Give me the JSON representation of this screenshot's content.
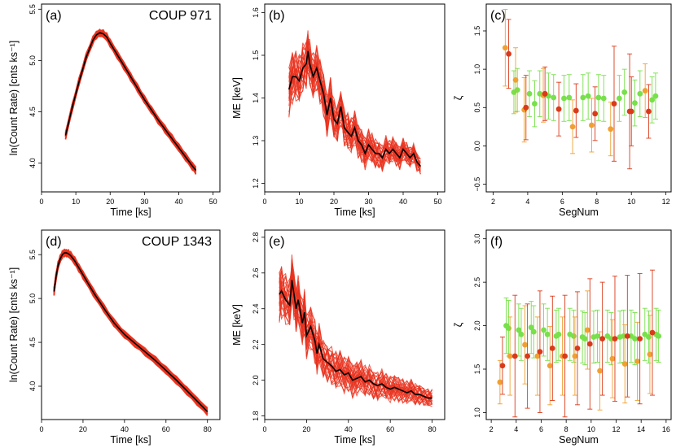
{
  "chart_data": [
    {
      "panel_label": "(a)",
      "type": "line",
      "annotation": "COUP 971",
      "xlabel": "Time [ks]",
      "ylabel": "ln(Count Rate) [cnts ks⁻¹]",
      "xlim": [
        0,
        52
      ],
      "ylim": [
        3.72,
        5.55
      ],
      "xticks": [
        0,
        10,
        20,
        30,
        40,
        50
      ],
      "yticks": [
        4.0,
        4.5,
        5.0,
        5.5
      ],
      "ytick_labels": [
        "4.0",
        "4.5",
        "5.0",
        "5.5"
      ],
      "band_color": "#e8321e",
      "line_color": "#000000",
      "series": [
        {
          "name": "ln(Count Rate)",
          "x": [
            7,
            9,
            11,
            13,
            15,
            16,
            17,
            18,
            19,
            20,
            22,
            24,
            26,
            28,
            30,
            32,
            34,
            36,
            38,
            40,
            42,
            44,
            45
          ],
          "y": [
            4.27,
            4.55,
            4.8,
            5.03,
            5.2,
            5.25,
            5.27,
            5.26,
            5.23,
            5.17,
            5.06,
            4.95,
            4.84,
            4.73,
            4.62,
            4.52,
            4.42,
            4.33,
            4.24,
            4.15,
            4.06,
            3.97,
            3.93
          ]
        }
      ]
    },
    {
      "panel_label": "(b)",
      "type": "line",
      "xlabel": "Time [ks]",
      "ylabel": "ME [keV]",
      "xlim": [
        0,
        52
      ],
      "ylim": [
        1.18,
        1.62
      ],
      "xticks": [
        0,
        10,
        20,
        30,
        40,
        50
      ],
      "yticks": [
        1.2,
        1.3,
        1.4,
        1.5,
        1.6
      ],
      "ytick_labels": [
        "1.2",
        "1.3",
        "1.4",
        "1.5",
        "1.6"
      ],
      "band_color": "#e8321e",
      "line_color": "#000000",
      "series": [
        {
          "name": "ME",
          "x": [
            7,
            8,
            9,
            10,
            11,
            12,
            12.5,
            13,
            14,
            15,
            16,
            17,
            18,
            19,
            20,
            21,
            22,
            23,
            24,
            25,
            26,
            27,
            28,
            29,
            30,
            31,
            32,
            33,
            34,
            35,
            36,
            37,
            38,
            39,
            40,
            41,
            42,
            43,
            44,
            45
          ],
          "y": [
            1.42,
            1.45,
            1.45,
            1.44,
            1.47,
            1.48,
            1.51,
            1.48,
            1.45,
            1.47,
            1.44,
            1.41,
            1.36,
            1.4,
            1.35,
            1.34,
            1.38,
            1.33,
            1.32,
            1.31,
            1.33,
            1.3,
            1.29,
            1.27,
            1.29,
            1.28,
            1.27,
            1.27,
            1.26,
            1.28,
            1.27,
            1.28,
            1.27,
            1.26,
            1.28,
            1.27,
            1.26,
            1.27,
            1.25,
            1.24
          ]
        }
      ]
    },
    {
      "panel_label": "(c)",
      "type": "scatter",
      "xlabel": "SegNum",
      "ylabel": "ζ",
      "xlim": [
        1.6,
        12.3
      ],
      "ylim": [
        -0.6,
        1.85
      ],
      "xticks": [
        2,
        4,
        6,
        8,
        10,
        12
      ],
      "yticks": [
        -0.5,
        0.0,
        0.5,
        1.0,
        1.5
      ],
      "ytick_labels": [
        "−0.5",
        "0.0",
        "0.5",
        "1.0",
        "1.5"
      ],
      "series": [
        {
          "name": "green",
          "color": "#77e04a",
          "x": [
            3.2,
            3.4,
            4.1,
            4.4,
            4.7,
            5.2,
            5.5,
            6.1,
            6.4,
            7.2,
            7.5,
            8.1,
            8.4,
            9.3,
            9.6,
            10.2,
            10.5,
            11.2,
            11.4
          ],
          "y": [
            0.7,
            0.73,
            0.68,
            0.55,
            0.68,
            0.65,
            0.63,
            0.62,
            0.63,
            0.63,
            0.65,
            0.63,
            0.62,
            0.62,
            0.7,
            0.56,
            0.68,
            0.6,
            0.65
          ],
          "err": [
            0.28,
            0.28,
            0.3,
            0.3,
            0.3,
            0.3,
            0.3,
            0.3,
            0.3,
            0.3,
            0.3,
            0.3,
            0.3,
            0.3,
            0.3,
            0.3,
            0.3,
            0.3,
            0.3
          ]
        },
        {
          "name": "orange",
          "color": "#f0a030",
          "x": [
            2.7,
            3.3,
            3.8,
            4.9,
            6.6,
            7.7,
            8.8,
            10.8
          ],
          "y": [
            1.28,
            0.86,
            0.47,
            0.66,
            0.25,
            0.27,
            0.22,
            0.72
          ],
          "err": [
            0.5,
            0.42,
            0.42,
            0.35,
            0.35,
            0.35,
            0.35,
            0.35
          ]
        },
        {
          "name": "red",
          "color": "#d93a1a",
          "x": [
            2.9,
            3.9,
            5.0,
            5.8,
            6.8,
            7.9,
            9.0,
            9.9,
            10.0,
            11.0
          ],
          "y": [
            1.2,
            0.5,
            0.68,
            0.48,
            0.46,
            0.42,
            0.55,
            0.45,
            0.45,
            0.45
          ],
          "err": [
            0.45,
            0.42,
            0.35,
            0.35,
            0.35,
            0.35,
            0.75,
            0.75,
            0.45,
            0.35
          ]
        }
      ]
    },
    {
      "panel_label": "(d)",
      "type": "line",
      "annotation": "COUP 1343",
      "xlabel": "Time [ks]",
      "ylabel": "ln(Count Rate) [cnts ks⁻¹]",
      "xlim": [
        0,
        86
      ],
      "ylim": [
        3.62,
        5.78
      ],
      "xticks": [
        0,
        20,
        40,
        60,
        80
      ],
      "yticks": [
        4.0,
        4.5,
        5.0,
        5.5
      ],
      "ytick_labels": [
        "4.0",
        "4.5",
        "5.0",
        "5.5"
      ],
      "band_color": "#e8321e",
      "line_color": "#000000",
      "series": [
        {
          "name": "ln(Count Rate)",
          "x": [
            6,
            7,
            8,
            9,
            10,
            11,
            12,
            13,
            14,
            16,
            18,
            20,
            25,
            30,
            35,
            40,
            45,
            50,
            55,
            60,
            65,
            70,
            75,
            80
          ],
          "y": [
            5.08,
            5.25,
            5.38,
            5.45,
            5.5,
            5.52,
            5.52,
            5.51,
            5.49,
            5.43,
            5.35,
            5.27,
            5.07,
            4.89,
            4.72,
            4.59,
            4.49,
            4.39,
            4.29,
            4.18,
            4.07,
            3.95,
            3.83,
            3.71
          ]
        }
      ]
    },
    {
      "panel_label": "(e)",
      "type": "line",
      "xlabel": "Time [ks]",
      "ylabel": "ME [keV]",
      "xlim": [
        0,
        86
      ],
      "ylim": [
        1.78,
        2.84
      ],
      "xticks": [
        0,
        20,
        40,
        60,
        80
      ],
      "yticks": [
        1.8,
        2.0,
        2.2,
        2.4,
        2.6,
        2.8
      ],
      "ytick_labels": [
        "1.8",
        "2.0",
        "2.2",
        "2.4",
        "2.6",
        "2.8"
      ],
      "band_color": "#e8321e",
      "line_color": "#000000",
      "series": [
        {
          "name": "ME",
          "x": [
            7,
            8,
            10,
            12,
            13,
            14,
            15,
            16,
            18,
            19,
            20,
            22,
            24,
            25,
            26,
            28,
            30,
            32,
            34,
            36,
            38,
            40,
            42,
            44,
            46,
            48,
            50,
            52,
            54,
            56,
            58,
            60,
            62,
            64,
            66,
            68,
            70,
            72,
            74,
            76,
            78,
            80
          ],
          "y": [
            2.48,
            2.5,
            2.45,
            2.42,
            2.56,
            2.48,
            2.4,
            2.45,
            2.32,
            2.38,
            2.25,
            2.3,
            2.22,
            2.15,
            2.2,
            2.12,
            2.1,
            2.08,
            2.05,
            2.06,
            2.03,
            2.04,
            2.0,
            2.01,
            2.02,
            1.99,
            2.0,
            1.98,
            1.97,
            1.98,
            1.96,
            1.95,
            1.96,
            1.95,
            1.94,
            1.93,
            1.94,
            1.92,
            1.92,
            1.91,
            1.9,
            1.9
          ]
        }
      ]
    },
    {
      "panel_label": "(f)",
      "type": "scatter",
      "xlabel": "SegNum",
      "ylabel": "ζ",
      "xlim": [
        1.6,
        16.4
      ],
      "ylim": [
        0.92,
        3.1
      ],
      "xticks": [
        2,
        4,
        6,
        8,
        10,
        12,
        14,
        16
      ],
      "yticks": [
        1.0,
        1.5,
        2.0,
        2.5,
        3.0
      ],
      "ytick_labels": [
        "1.0",
        "1.5",
        "2.0",
        "2.5",
        "3.0"
      ],
      "series": [
        {
          "name": "green",
          "color": "#77e04a",
          "x": [
            3.2,
            3.4,
            4.2,
            4.4,
            5.2,
            5.4,
            6.2,
            6.5,
            7.2,
            7.4,
            8.3,
            8.6,
            9.3,
            9.5,
            10.2,
            10.5,
            11.3,
            11.6,
            12.3,
            12.6,
            13.2,
            13.5,
            14.3,
            14.6,
            15.2,
            15.4
          ],
          "y": [
            2.0,
            1.97,
            1.95,
            1.9,
            1.98,
            1.93,
            1.95,
            1.9,
            1.88,
            1.9,
            1.9,
            1.88,
            1.87,
            1.85,
            1.87,
            1.88,
            1.88,
            1.85,
            1.87,
            1.88,
            1.88,
            1.85,
            1.9,
            1.87,
            1.9,
            1.88
          ],
          "err": [
            0.32,
            0.32,
            0.3,
            0.3,
            0.3,
            0.3,
            0.3,
            0.3,
            0.3,
            0.3,
            0.3,
            0.3,
            0.3,
            0.3,
            0.3,
            0.3,
            0.3,
            0.3,
            0.3,
            0.3,
            0.3,
            0.3,
            0.3,
            0.3,
            0.3,
            0.3
          ]
        },
        {
          "name": "orange",
          "color": "#f0a030",
          "x": [
            2.7,
            3.5,
            4.7,
            5.7,
            6.7,
            7.7,
            8.7,
            9.7,
            10.7,
            11.7,
            12.7,
            13.7,
            14.7
          ],
          "y": [
            1.35,
            1.65,
            1.78,
            1.65,
            1.54,
            1.65,
            1.65,
            1.95,
            1.48,
            1.62,
            1.56,
            1.59,
            1.67
          ],
          "err": [
            0.25,
            0.45,
            0.45,
            0.45,
            0.45,
            0.45,
            0.45,
            0.45,
            0.45,
            0.45,
            0.45,
            0.45,
            0.45
          ]
        },
        {
          "name": "red",
          "color": "#d93a1a",
          "x": [
            2.9,
            3.9,
            4.9,
            5.9,
            6.9,
            7.9,
            8.9,
            9.9,
            10.9,
            11.9,
            12.9,
            13.9,
            14.9
          ],
          "y": [
            1.54,
            1.65,
            1.65,
            1.7,
            1.74,
            1.65,
            1.74,
            1.79,
            1.85,
            1.85,
            1.88,
            1.85,
            1.92
          ],
          "err": [
            0.33,
            0.7,
            0.6,
            0.7,
            0.6,
            0.7,
            0.65,
            0.75,
            0.65,
            0.72,
            0.7,
            0.75,
            0.72
          ]
        }
      ]
    }
  ]
}
